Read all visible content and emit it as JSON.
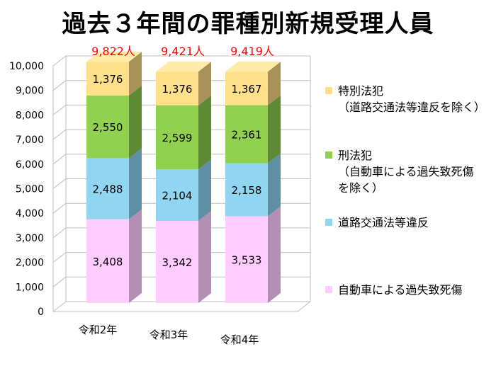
{
  "title": "過去３年間の罪種別新規受理人員",
  "chart_data": {
    "type": "bar",
    "stacked": true,
    "three_d": true,
    "categories": [
      "令和2年",
      "令和3年",
      "令和4年"
    ],
    "totals": [
      "9,822人",
      "9,421人",
      "9,419人"
    ],
    "series": [
      {
        "name": "自動車による過失致死傷",
        "values": [
          3408,
          3342,
          3533
        ],
        "labels": [
          "3,408",
          "3,342",
          "3,533"
        ],
        "color": "#ffccff",
        "side": "#b38fb3",
        "top": "#e6b8e6"
      },
      {
        "name": "道路交通法等違反",
        "values": [
          2488,
          2104,
          2158
        ],
        "labels": [
          "2,488",
          "2,104",
          "2,158"
        ],
        "color": "#92d5f0",
        "side": "#5e8fa4",
        "top": "#7cc3e0"
      },
      {
        "name": "刑法犯（自動車による過失致死傷を除く）",
        "values": [
          2550,
          2599,
          2361
        ],
        "labels": [
          "2,550",
          "2,599",
          "2,361"
        ],
        "color": "#92d050",
        "side": "#5e8a34",
        "top": "#7fbb42"
      },
      {
        "name": "特別法犯（道路交通法等違反を除く）",
        "values": [
          1376,
          1376,
          1367
        ],
        "labels": [
          "1,376",
          "1,376",
          "1,367"
        ],
        "color": "#ffe08a",
        "side": "#a8925a",
        "top": "#ffeaa8"
      }
    ],
    "ylim": [
      0,
      10000
    ],
    "yticks": [
      "0",
      "1,000",
      "2,000",
      "3,000",
      "4,000",
      "5,000",
      "6,000",
      "7,000",
      "8,000",
      "9,000",
      "10,000"
    ],
    "grid": true
  },
  "legend": [
    {
      "lines": [
        "特別法犯",
        "（道路交通法等違反を除く）"
      ],
      "color": "#ffe08a"
    },
    {
      "lines": [
        "刑法犯",
        "（自動車による過失致死傷",
        "を除く）"
      ],
      "color": "#92d050"
    },
    {
      "lines": [
        "道路交通法等違反"
      ],
      "color": "#92d5f0"
    },
    {
      "lines": [
        "自動車による過失致死傷"
      ],
      "color": "#ffccff"
    }
  ],
  "colors": {
    "total_label": "#ff0000",
    "grid": "#bfbfbf"
  }
}
